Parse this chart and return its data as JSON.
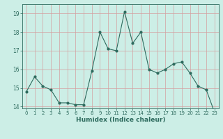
{
  "x": [
    0,
    1,
    2,
    3,
    4,
    5,
    6,
    7,
    8,
    9,
    10,
    11,
    12,
    13,
    14,
    15,
    16,
    17,
    18,
    19,
    20,
    21,
    22,
    23
  ],
  "y": [
    14.8,
    15.6,
    15.1,
    14.9,
    14.2,
    14.2,
    14.1,
    14.1,
    15.9,
    18.0,
    17.1,
    17.0,
    19.1,
    17.4,
    18.0,
    16.0,
    15.8,
    16.0,
    16.3,
    16.4,
    15.8,
    15.1,
    14.9,
    13.7
  ],
  "xlabel": "Humidex (Indice chaleur)",
  "ylabel": "",
  "line_color": "#2e6b5e",
  "bg_color": "#cceee6",
  "grid_color": "#d4a0a0",
  "text_color": "#2e6b5e",
  "ylim": [
    13.9,
    19.5
  ],
  "yticks": [
    14,
    15,
    16,
    17,
    18,
    19
  ],
  "xticks": [
    0,
    1,
    2,
    3,
    4,
    5,
    6,
    7,
    8,
    9,
    10,
    11,
    12,
    13,
    14,
    15,
    16,
    17,
    18,
    19,
    20,
    21,
    22,
    23
  ]
}
